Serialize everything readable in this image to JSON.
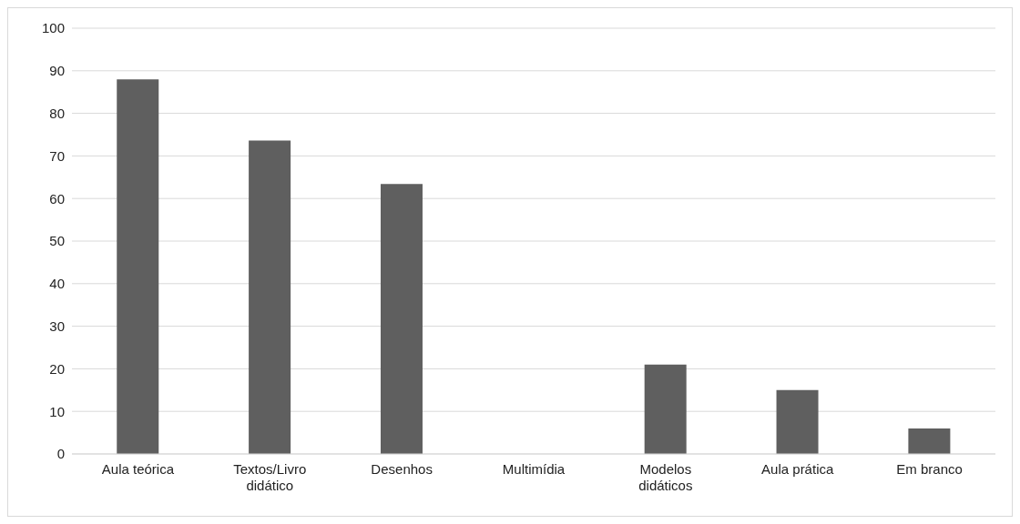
{
  "chart_data": {
    "type": "bar",
    "categories": [
      "Aula teórica",
      "Textos/Livro didático",
      "Desenhos",
      "Multimídia",
      "Modelos didáticos",
      "Aula prática",
      "Em branco"
    ],
    "values": [
      88,
      73.6,
      63.4,
      0,
      21,
      15,
      6
    ],
    "color": "#5f5f5f",
    "ylim": [
      0,
      100
    ],
    "yticks": [
      0,
      10,
      20,
      30,
      40,
      50,
      60,
      70,
      80,
      90,
      100
    ],
    "grid": "y"
  }
}
